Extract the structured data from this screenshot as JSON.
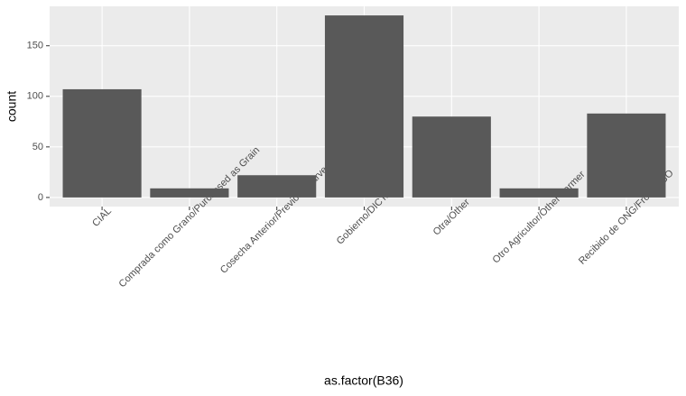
{
  "chart_data": {
    "type": "bar",
    "categories": [
      "CIAL",
      "Comprada como Grano/Purchased as Grain",
      "Cosecha Anterior/Previous Harvest",
      "Gobierno/DICTA",
      "Otra/Other",
      "Otro Agricultor/Other Farmer",
      "Recibido de ONG/From NGO"
    ],
    "values": [
      107,
      9,
      22,
      180,
      80,
      9,
      83
    ],
    "color": "#595959",
    "ylim": [
      -9,
      189
    ],
    "yticks": [
      0,
      50,
      100,
      150
    ],
    "grid": true,
    "x_label": "as.factor(B36)",
    "y_label": "count"
  }
}
